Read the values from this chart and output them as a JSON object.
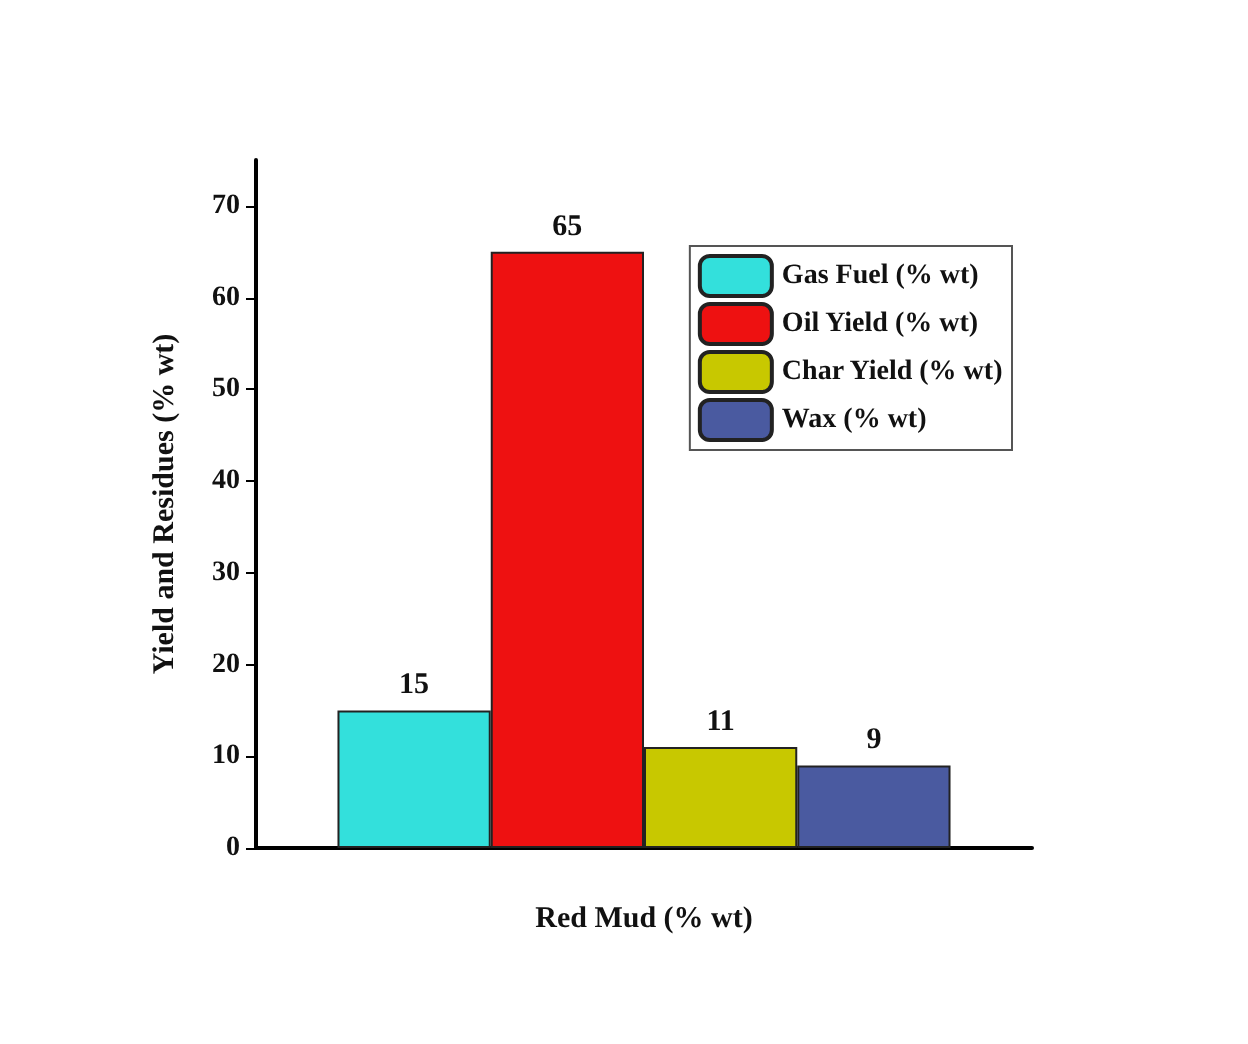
{
  "chart_data": {
    "type": "bar",
    "xlabel": "Red Mud (% wt)",
    "ylabel": "Yield and Residues (% wt)",
    "categories": [
      null
    ],
    "series": [
      {
        "name": "Gas Fuel (% wt)",
        "color": "#33e0dc",
        "values": [
          15
        ]
      },
      {
        "name": "Oil Yield (% wt)",
        "color": "#ee1111",
        "values": [
          65
        ]
      },
      {
        "name": "Char Yield (% wt)",
        "color": "#c8c800",
        "values": [
          11
        ]
      },
      {
        "name": "Wax (% wt)",
        "color": "#4a5aa0",
        "values": [
          9
        ]
      }
    ],
    "ylim": [
      0,
      75
    ],
    "yticks": [
      0,
      10,
      20,
      30,
      40,
      50,
      60,
      70
    ],
    "data_labels": true,
    "legend": "top right",
    "grid": false
  }
}
